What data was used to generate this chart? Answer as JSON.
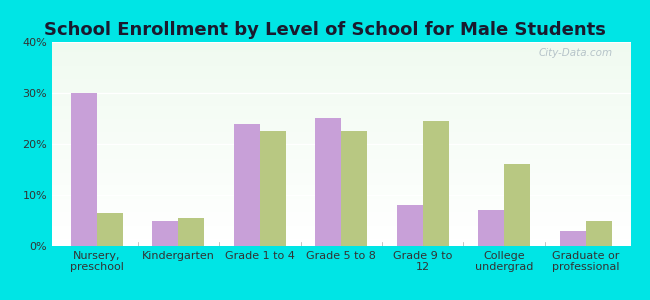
{
  "title": "School Enrollment by Level of School for Male Students",
  "categories": [
    "Nursery,\npreschool",
    "Kindergarten",
    "Grade 1 to 4",
    "Grade 5 to 8",
    "Grade 9 to\n12",
    "College\nundergrad",
    "Graduate or\nprofessional"
  ],
  "plantation": [
    30,
    5,
    24,
    25,
    8,
    7,
    3
  ],
  "kentucky": [
    6.5,
    5.5,
    22.5,
    22.5,
    24.5,
    16,
    5
  ],
  "plantation_color": "#c8a0d8",
  "kentucky_color": "#b8c882",
  "background_color": "#00e5e5",
  "ylim": [
    0,
    40
  ],
  "yticks": [
    0,
    10,
    20,
    30,
    40
  ],
  "bar_width": 0.32,
  "title_fontsize": 13,
  "tick_fontsize": 8,
  "legend_fontsize": 9.5,
  "watermark": "City-Data.com"
}
